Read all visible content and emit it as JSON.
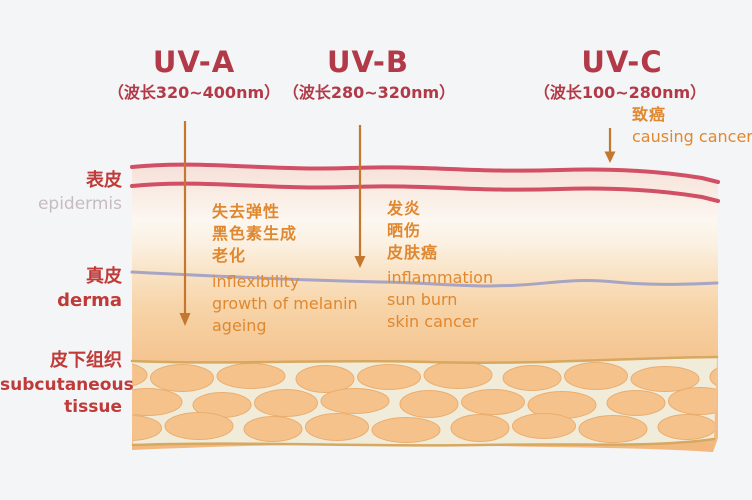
{
  "uv": [
    {
      "title": "UV-A",
      "wavelength": "（波长320~400nm）",
      "effects_cn": [
        "失去弹性",
        "黑色素生成",
        "老化"
      ],
      "effects_en": [
        "inflexibility",
        "growth of melanin",
        "ageing"
      ]
    },
    {
      "title": "UV-B",
      "wavelength": "（波长280~320nm）",
      "effects_cn": [
        "发炎",
        "晒伤",
        "皮肤癌"
      ],
      "effects_en": [
        "inflammation",
        "sun burn",
        "skin cancer"
      ]
    },
    {
      "title": "UV-C",
      "wavelength": "（波长100~280nm）",
      "effects_cn": [
        "致癌"
      ],
      "effects_en": [
        "causing cancer"
      ]
    }
  ],
  "layers": [
    {
      "cn": "表皮",
      "en": "epidermis"
    },
    {
      "cn": "真皮",
      "en": "derma"
    },
    {
      "cn": "皮下组织",
      "en": "subcutaneous tissue"
    }
  ],
  "colors": {
    "page_bg": "#f4f5f6",
    "title_red": "#b23a48",
    "label_red": "#bf3a38",
    "label_muted": "#c8bbbd",
    "orange_text": "#e0882f",
    "skin_line_red": "#d15066",
    "derma_line": "#a8a4c3",
    "band_bg": "#f1ecd9",
    "band_line": "#d6a860",
    "fat_cell": "#f6c28c",
    "arrow": "#c4772e"
  }
}
